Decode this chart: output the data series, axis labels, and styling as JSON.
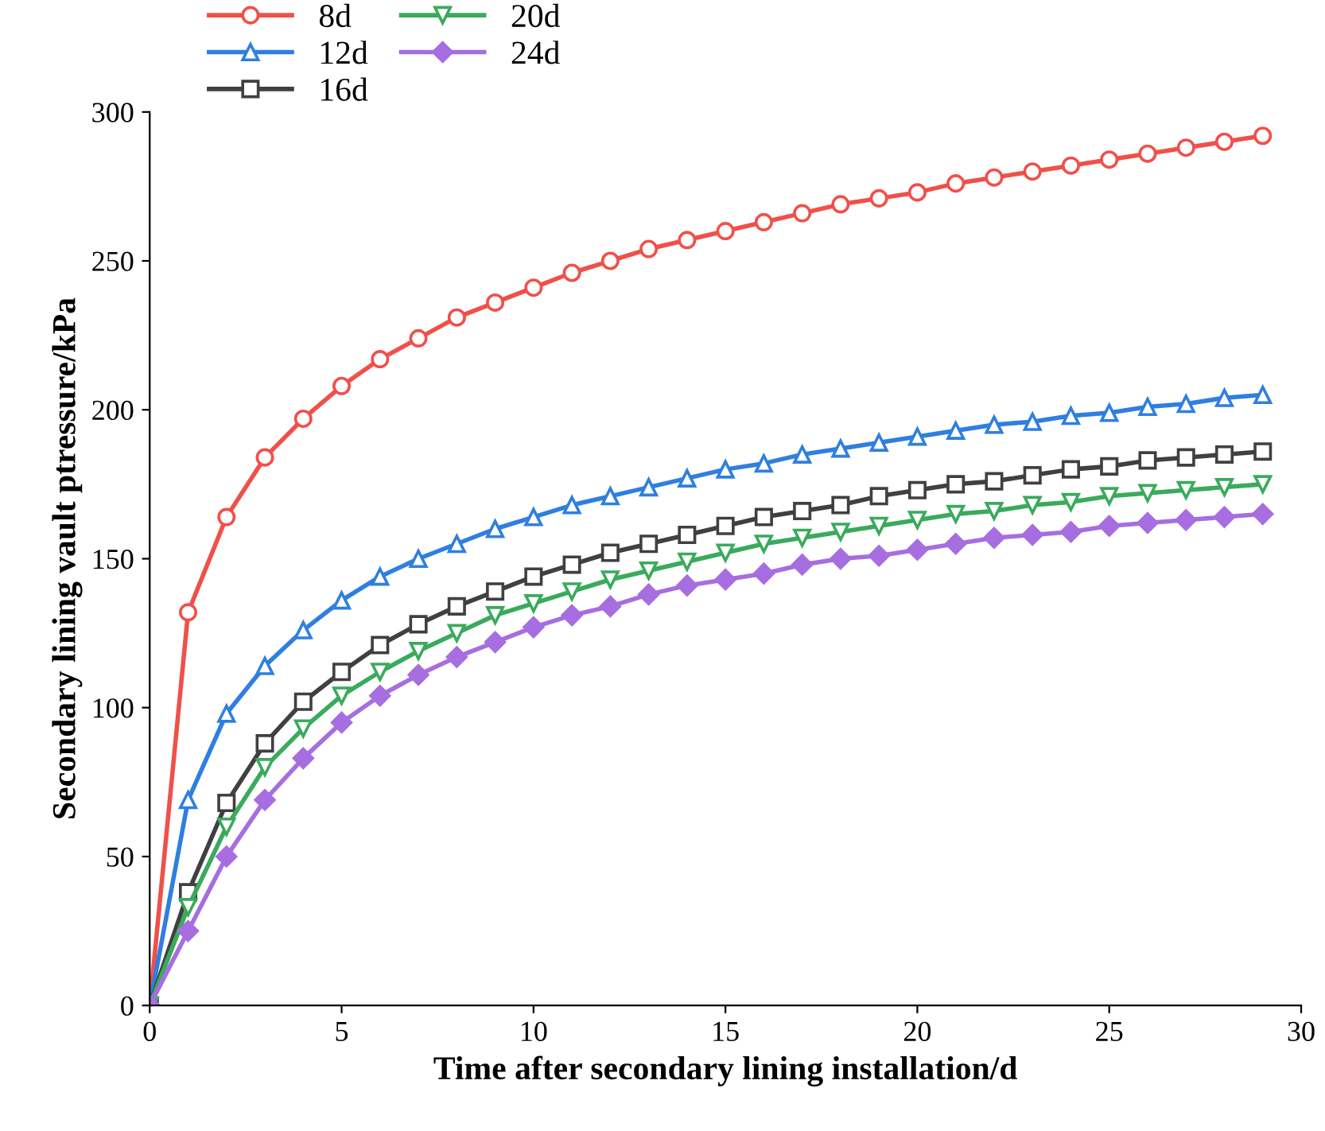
{
  "chart_data": {
    "type": "line",
    "xlabel": "Time after secondary lining installation/d",
    "ylabel": "Secondary lining vault ptressure/kPa",
    "x": [
      0,
      1,
      2,
      3,
      4,
      5,
      6,
      7,
      8,
      9,
      10,
      11,
      12,
      13,
      14,
      15,
      16,
      17,
      18,
      19,
      20,
      21,
      22,
      23,
      24,
      25,
      26,
      27,
      28,
      29
    ],
    "series": [
      {
        "name": "8d",
        "color": "#f0504a",
        "marker": "circle",
        "values": [
          0,
          132,
          164,
          184,
          197,
          208,
          217,
          224,
          231,
          236,
          241,
          246,
          250,
          254,
          257,
          260,
          263,
          266,
          269,
          271,
          273,
          276,
          278,
          280,
          282,
          284,
          286,
          288,
          290,
          292
        ]
      },
      {
        "name": "12d",
        "color": "#2f7fe0",
        "marker": "triangle",
        "values": [
          0,
          69,
          98,
          114,
          126,
          136,
          144,
          150,
          155,
          160,
          164,
          168,
          171,
          174,
          177,
          180,
          182,
          185,
          187,
          189,
          191,
          193,
          195,
          196,
          198,
          199,
          201,
          202,
          204,
          205
        ]
      },
      {
        "name": "16d",
        "color": "#404040",
        "marker": "square",
        "values": [
          0,
          38,
          68,
          88,
          102,
          112,
          121,
          128,
          134,
          139,
          144,
          148,
          152,
          155,
          158,
          161,
          164,
          166,
          168,
          171,
          173,
          175,
          176,
          178,
          180,
          181,
          183,
          184,
          185,
          186
        ]
      },
      {
        "name": "20d",
        "color": "#3aaa5c",
        "marker": "triangle-down",
        "values": [
          0,
          33,
          60,
          80,
          93,
          104,
          112,
          119,
          125,
          131,
          135,
          139,
          143,
          146,
          149,
          152,
          155,
          157,
          159,
          161,
          163,
          165,
          166,
          168,
          169,
          171,
          172,
          173,
          174,
          175
        ]
      },
      {
        "name": "24d",
        "color": "#a66ee0",
        "marker": "diamond",
        "values": [
          0,
          25,
          50,
          69,
          83,
          95,
          104,
          111,
          117,
          122,
          127,
          131,
          134,
          138,
          141,
          143,
          145,
          148,
          150,
          151,
          153,
          155,
          157,
          158,
          159,
          161,
          162,
          163,
          164,
          165
        ]
      }
    ],
    "xlim": [
      0,
      30
    ],
    "xticks": [
      0,
      5,
      10,
      15,
      20,
      25,
      30
    ],
    "ylim": [
      0,
      300
    ],
    "yticks": [
      0,
      50,
      100,
      150,
      200,
      250,
      300
    ],
    "grid": false,
    "legend": "top left",
    "line_style": "solid"
  }
}
